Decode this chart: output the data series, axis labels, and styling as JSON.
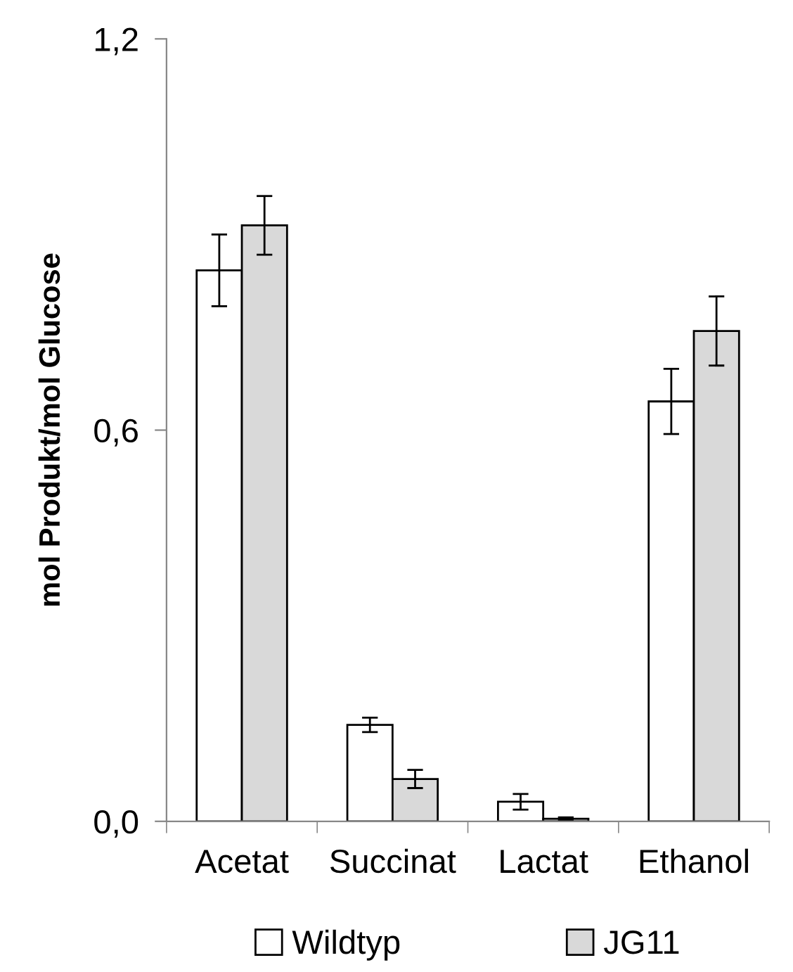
{
  "chart_data": {
    "type": "bar",
    "ylabel": "mol Produkt/mol Glucose",
    "categories": [
      "Acetat",
      "Succinat",
      "Lactat",
      "Ethanol"
    ],
    "series": [
      {
        "name": "Wildtyp",
        "color": "#ffffff",
        "values": [
          0.845,
          0.148,
          0.03,
          0.644
        ],
        "errors": [
          0.055,
          0.011,
          0.012,
          0.05
        ]
      },
      {
        "name": "JG11",
        "color": "#d9d9d9",
        "values": [
          0.914,
          0.065,
          0.004,
          0.752
        ],
        "errors": [
          0.045,
          0.014,
          0.002,
          0.053
        ]
      }
    ],
    "ylim": [
      0,
      1.2
    ],
    "yticks": [
      {
        "value": 0,
        "label": "0,0"
      },
      {
        "value": 0.6,
        "label": "0,6"
      },
      {
        "value": 1.2,
        "label": "1,2"
      }
    ],
    "grid": false,
    "legend": "bottom"
  }
}
